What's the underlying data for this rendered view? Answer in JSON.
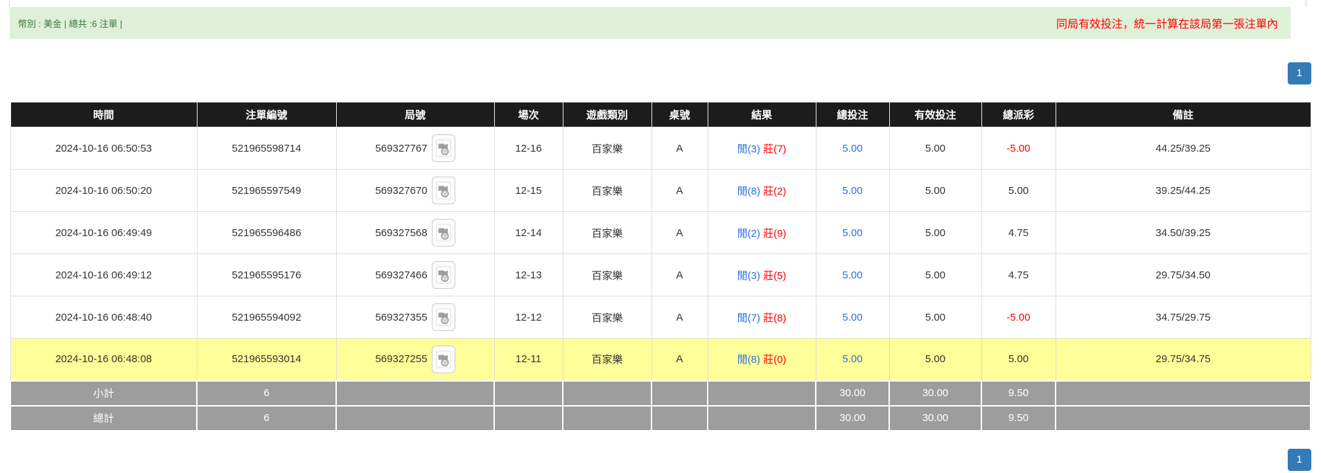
{
  "alert": {
    "left_text": "幣別 : 美金 | 總共 :6 注單 |",
    "right_text": "同局有效投注，統一計算在該局第一張注單內"
  },
  "pagination": {
    "page": "1"
  },
  "table": {
    "headers": [
      "時間",
      "注單編號",
      "局號",
      "場次",
      "遊戲類別",
      "桌號",
      "結果",
      "總投注",
      "有效投注",
      "總派彩",
      "備註"
    ],
    "icons": {
      "video_icon": "film-camera-replay"
    },
    "rows": [
      {
        "time": "2024-10-16 06:50:53",
        "bet_id": "521965598714",
        "round_id": "569327767",
        "session": "12-16",
        "game": "百家樂",
        "table_no": "A",
        "result_player": "閒(3)",
        "result_banker": "莊(7)",
        "total_bet": "5.00",
        "valid_bet": "5.00",
        "payout": "-5.00",
        "remark": "44.25/39.25",
        "highlighted": false
      },
      {
        "time": "2024-10-16 06:50:20",
        "bet_id": "521965597549",
        "round_id": "569327670",
        "session": "12-15",
        "game": "百家樂",
        "table_no": "A",
        "result_player": "閒(8)",
        "result_banker": "莊(2)",
        "total_bet": "5.00",
        "valid_bet": "5.00",
        "payout": "5.00",
        "remark": "39.25/44.25",
        "highlighted": false
      },
      {
        "time": "2024-10-16 06:49:49",
        "bet_id": "521965596486",
        "round_id": "569327568",
        "session": "12-14",
        "game": "百家樂",
        "table_no": "A",
        "result_player": "閒(2)",
        "result_banker": "莊(9)",
        "total_bet": "5.00",
        "valid_bet": "5.00",
        "payout": "4.75",
        "remark": "34.50/39.25",
        "highlighted": false
      },
      {
        "time": "2024-10-16 06:49:12",
        "bet_id": "521965595176",
        "round_id": "569327466",
        "session": "12-13",
        "game": "百家樂",
        "table_no": "A",
        "result_player": "閒(3)",
        "result_banker": "莊(5)",
        "total_bet": "5.00",
        "valid_bet": "5.00",
        "payout": "4.75",
        "remark": "29.75/34.50",
        "highlighted": false
      },
      {
        "time": "2024-10-16 06:48:40",
        "bet_id": "521965594092",
        "round_id": "569327355",
        "session": "12-12",
        "game": "百家樂",
        "table_no": "A",
        "result_player": "閒(7)",
        "result_banker": "莊(8)",
        "total_bet": "5.00",
        "valid_bet": "5.00",
        "payout": "-5.00",
        "remark": "34.75/29.75",
        "highlighted": false
      },
      {
        "time": "2024-10-16 06:48:08",
        "bet_id": "521965593014",
        "round_id": "569327255",
        "session": "12-11",
        "game": "百家樂",
        "table_no": "A",
        "result_player": "閒(8)",
        "result_banker": "莊(0)",
        "total_bet": "5.00",
        "valid_bet": "5.00",
        "payout": "5.00",
        "remark": "29.75/34.75",
        "highlighted": true
      }
    ],
    "subtotal": {
      "label": "小計",
      "count": "6",
      "total_bet": "30.00",
      "valid_bet": "30.00",
      "payout": "9.50"
    },
    "total": {
      "label": "總計",
      "count": "6",
      "total_bet": "30.00",
      "valid_bet": "30.00",
      "payout": "9.50"
    }
  },
  "colors": {
    "alert-bg": "#dff0d8",
    "alert-text": "#3c763d",
    "notice-red": "#ff0000",
    "pagination-blue": "#337ab7",
    "header-bg": "#1c1c1c",
    "summary-bg": "#9d9d9d",
    "highlight-yellow": "#ffff99",
    "player-blue": "#2d6fe0",
    "banker-red": "#ff0000",
    "negative-red": "#ff0000"
  }
}
